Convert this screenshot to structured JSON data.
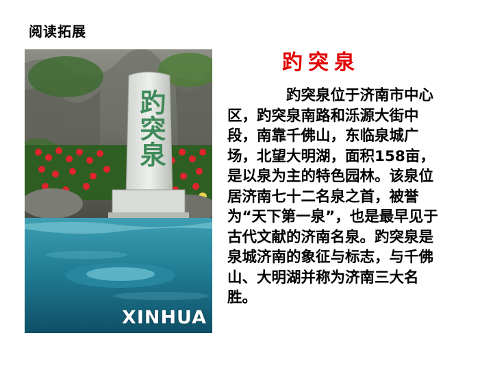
{
  "section_title": "阅读拓展",
  "main_title": "趵突泉",
  "paragraph": "趵突泉位于济南市中心区，趵突泉南路和泺源大街中段，南靠千佛山，东临泉城广场，北望大明湖，面积158亩，是以泉为主的特色园林。该泉位居济南七十二名泉之首，被誉为“天下第一泉”，也是最早见于古代文献的济南名泉。趵突泉是泉城济南的象征与标志，与千佛山、大明湖并称为济南三大名胜。",
  "photo": {
    "stele_text": "趵突泉",
    "watermark": "XINHUA"
  }
}
